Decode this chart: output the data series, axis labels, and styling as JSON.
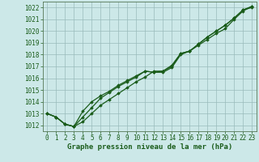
{
  "title": "",
  "xlabel": "Graphe pression niveau de la mer (hPa)",
  "bg_color": "#cce8e8",
  "line_color": "#1a5c1a",
  "grid_color": "#99bbbb",
  "spine_color": "#557755",
  "ylim": [
    1011.5,
    1022.5
  ],
  "xlim": [
    -0.5,
    23.5
  ],
  "yticks": [
    1012,
    1013,
    1014,
    1015,
    1016,
    1017,
    1018,
    1019,
    1020,
    1021,
    1022
  ],
  "xticks": [
    0,
    1,
    2,
    3,
    4,
    5,
    6,
    7,
    8,
    9,
    10,
    11,
    12,
    13,
    14,
    15,
    16,
    17,
    18,
    19,
    20,
    21,
    22,
    23
  ],
  "series1": [
    1013.0,
    1012.7,
    1012.1,
    1011.9,
    1012.3,
    1013.0,
    1013.7,
    1014.2,
    1014.7,
    1015.2,
    1015.7,
    1016.1,
    1016.6,
    1016.6,
    1017.0,
    1018.1,
    1018.3,
    1018.9,
    1019.5,
    1020.0,
    1020.5,
    1021.1,
    1021.8,
    1022.0
  ],
  "series2": [
    1013.0,
    1012.7,
    1012.1,
    1011.9,
    1012.7,
    1013.5,
    1014.3,
    1014.8,
    1015.3,
    1015.7,
    1016.1,
    1016.6,
    1016.5,
    1016.5,
    1016.9,
    1018.0,
    1018.3,
    1018.8,
    1019.3,
    1019.8,
    1020.2,
    1021.0,
    1021.7,
    1022.1
  ],
  "series3": [
    1013.0,
    1012.7,
    1012.1,
    1011.9,
    1013.2,
    1014.0,
    1014.5,
    1014.9,
    1015.4,
    1015.8,
    1016.2,
    1016.6,
    1016.5,
    1016.6,
    1017.1,
    1018.1,
    1018.3,
    1018.9,
    1019.5,
    1020.0,
    1020.5,
    1021.1,
    1021.8,
    1022.1
  ],
  "marker": "D",
  "markersize": 1.8,
  "linewidth": 0.9,
  "xlabel_fontsize": 6.5,
  "tick_fontsize": 5.5
}
